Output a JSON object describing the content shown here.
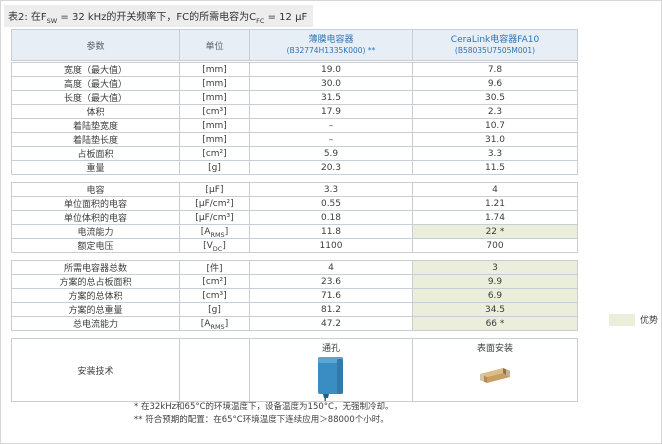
{
  "title": {
    "p1": "表2: 在F",
    "s1": "SW",
    "p2": " = 32 kHz的开关频率下，FC的所需电容为C",
    "s2": "FC",
    "p3": " = 12 μF"
  },
  "colors": {
    "header_bg": "#e8eef5",
    "accent_blue": "#2e74b5",
    "highlight_green": "#eaeedb",
    "border_gray": "#c9ced4",
    "film_cap_blue": "#3a8dc2",
    "smd_cap_tan": "#c89f63"
  },
  "header": {
    "param": "参数",
    "unit": "单位",
    "film_name": "薄膜电容器",
    "film_part": "(B32774H1335K000) **",
    "cl_name": "CeraLink电容器FA10",
    "cl_part": "(B58035U7505M001)"
  },
  "sections": [
    {
      "rows": [
        {
          "param": "宽度（最大值）",
          "unit": "[mm]",
          "film": "19.0",
          "cl": "7.8"
        },
        {
          "param": "高度（最大值）",
          "unit": "[mm]",
          "film": "30.0",
          "cl": "9.6"
        },
        {
          "param": "长度（最大值）",
          "unit": "[mm]",
          "film": "31.5",
          "cl": "30.5"
        },
        {
          "param": "体积",
          "unit": "[cm³]",
          "film": "17.9",
          "cl": "2.3"
        },
        {
          "param": "着陆垫宽度",
          "unit": "[mm]",
          "film": "–",
          "cl": "10.7"
        },
        {
          "param": "着陆垫长度",
          "unit": "[mm]",
          "film": "–",
          "cl": "31.0"
        },
        {
          "param": "占板面积",
          "unit": "[cm²]",
          "film": "5.9",
          "cl": "3.3"
        },
        {
          "param": "重量",
          "unit": "[g]",
          "film": "20.3",
          "cl": "11.5"
        }
      ]
    },
    {
      "rows": [
        {
          "param": "电容",
          "unit": "[μF]",
          "film": "3.3",
          "cl": "4"
        },
        {
          "param": "单位面积的电容",
          "unit": "[μF/cm²]",
          "film": "0.55",
          "cl": "1.21"
        },
        {
          "param": "单位体积的电容",
          "unit": "[μF/cm³]",
          "film": "0.18",
          "cl": "1.74"
        },
        {
          "param": "电流能力",
          "unit": {
            "b": "A",
            "sub": "RMS"
          },
          "film": "11.8",
          "cl": "22 *",
          "hl_cl": true
        },
        {
          "param": "额定电压",
          "unit": {
            "b": "V",
            "sub": "DC"
          },
          "film": "1100",
          "cl": "700"
        }
      ]
    },
    {
      "rows": [
        {
          "param": "所需电容器总数",
          "unit": "[件]",
          "film": "4",
          "cl": "3",
          "hl_cl": true
        },
        {
          "param": "方案的总占板面积",
          "unit": "[cm²]",
          "film": "23.6",
          "cl": "9.9",
          "hl_cl": true
        },
        {
          "param": "方案的总体积",
          "unit": "[cm³]",
          "film": "71.6",
          "cl": "6.9",
          "hl_cl": true
        },
        {
          "param": "方案的总重量",
          "unit": "[g]",
          "film": "81.2",
          "cl": "34.5",
          "hl_cl": true
        },
        {
          "param": "总电流能力",
          "unit": {
            "b": "A",
            "sub": "RMS"
          },
          "film": "47.2",
          "cl": "66 *",
          "hl_cl": true
        }
      ]
    }
  ],
  "mounting": {
    "param": "安装技术",
    "film_label": "通孔",
    "cl_label": "表面安装",
    "film_icon": "through-hole-film-capacitor",
    "cl_icon": "smd-ceralink-capacitor"
  },
  "legend": {
    "label": "优势"
  },
  "footnotes": [
    "* 在32kHz和65°C的环境温度下，设备温度为150°C，无强制冷却。",
    "** 符合预期的配置：在65°C环境温度下连续应用＞88000个小时。"
  ]
}
